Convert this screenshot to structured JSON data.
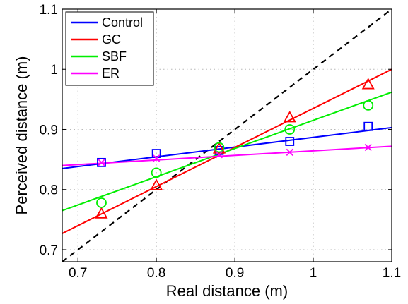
{
  "chart_data": {
    "type": "scatter",
    "xlabel": "Real distance (m)",
    "ylabel": "Perceived distance (m)",
    "xlim": [
      0.68,
      1.1
    ],
    "ylim": [
      0.68,
      1.1
    ],
    "xticks": [
      0.7,
      0.8,
      0.9,
      1.0,
      1.1
    ],
    "yticks": [
      0.7,
      0.8,
      0.9,
      1.0,
      1.1
    ],
    "xtick_labels": [
      "0.7",
      "0.8",
      "0.9",
      "1",
      "1.1"
    ],
    "ytick_labels": [
      "0.7",
      "0.8",
      "0.9",
      "1",
      "1.1"
    ],
    "grid": true,
    "legend_position": "top-left",
    "reference_line": {
      "style": "dashed",
      "color": "#000000",
      "x": [
        0.68,
        1.1
      ],
      "y": [
        0.68,
        1.1
      ]
    },
    "series": [
      {
        "name": "Control",
        "color": "#0000ff",
        "marker": "square",
        "x": [
          0.73,
          0.8,
          0.88,
          0.97,
          1.07
        ],
        "y": [
          0.845,
          0.86,
          0.865,
          0.88,
          0.905
        ],
        "fit_line": {
          "x": [
            0.68,
            1.1
          ],
          "y": [
            0.835,
            0.903
          ]
        }
      },
      {
        "name": "GC",
        "color": "#ff0000",
        "marker": "triangle",
        "x": [
          0.73,
          0.8,
          0.88,
          0.97,
          1.07
        ],
        "y": [
          0.76,
          0.807,
          0.868,
          0.92,
          0.975
        ],
        "fit_line": {
          "x": [
            0.68,
            1.1
          ],
          "y": [
            0.727,
            1.0
          ]
        }
      },
      {
        "name": "SBF",
        "color": "#00ee00",
        "marker": "circle",
        "x": [
          0.73,
          0.8,
          0.88,
          0.97,
          1.07
        ],
        "y": [
          0.778,
          0.828,
          0.87,
          0.9,
          0.94
        ],
        "fit_line": {
          "x": [
            0.68,
            1.1
          ],
          "y": [
            0.765,
            0.962
          ]
        }
      },
      {
        "name": "ER",
        "color": "#ff00ff",
        "marker": "x",
        "x": [
          0.73,
          0.8,
          0.88,
          0.97,
          1.07
        ],
        "y": [
          0.845,
          0.852,
          0.858,
          0.862,
          0.87
        ],
        "fit_line": {
          "x": [
            0.68,
            1.1
          ],
          "y": [
            0.84,
            0.872
          ]
        }
      }
    ]
  }
}
